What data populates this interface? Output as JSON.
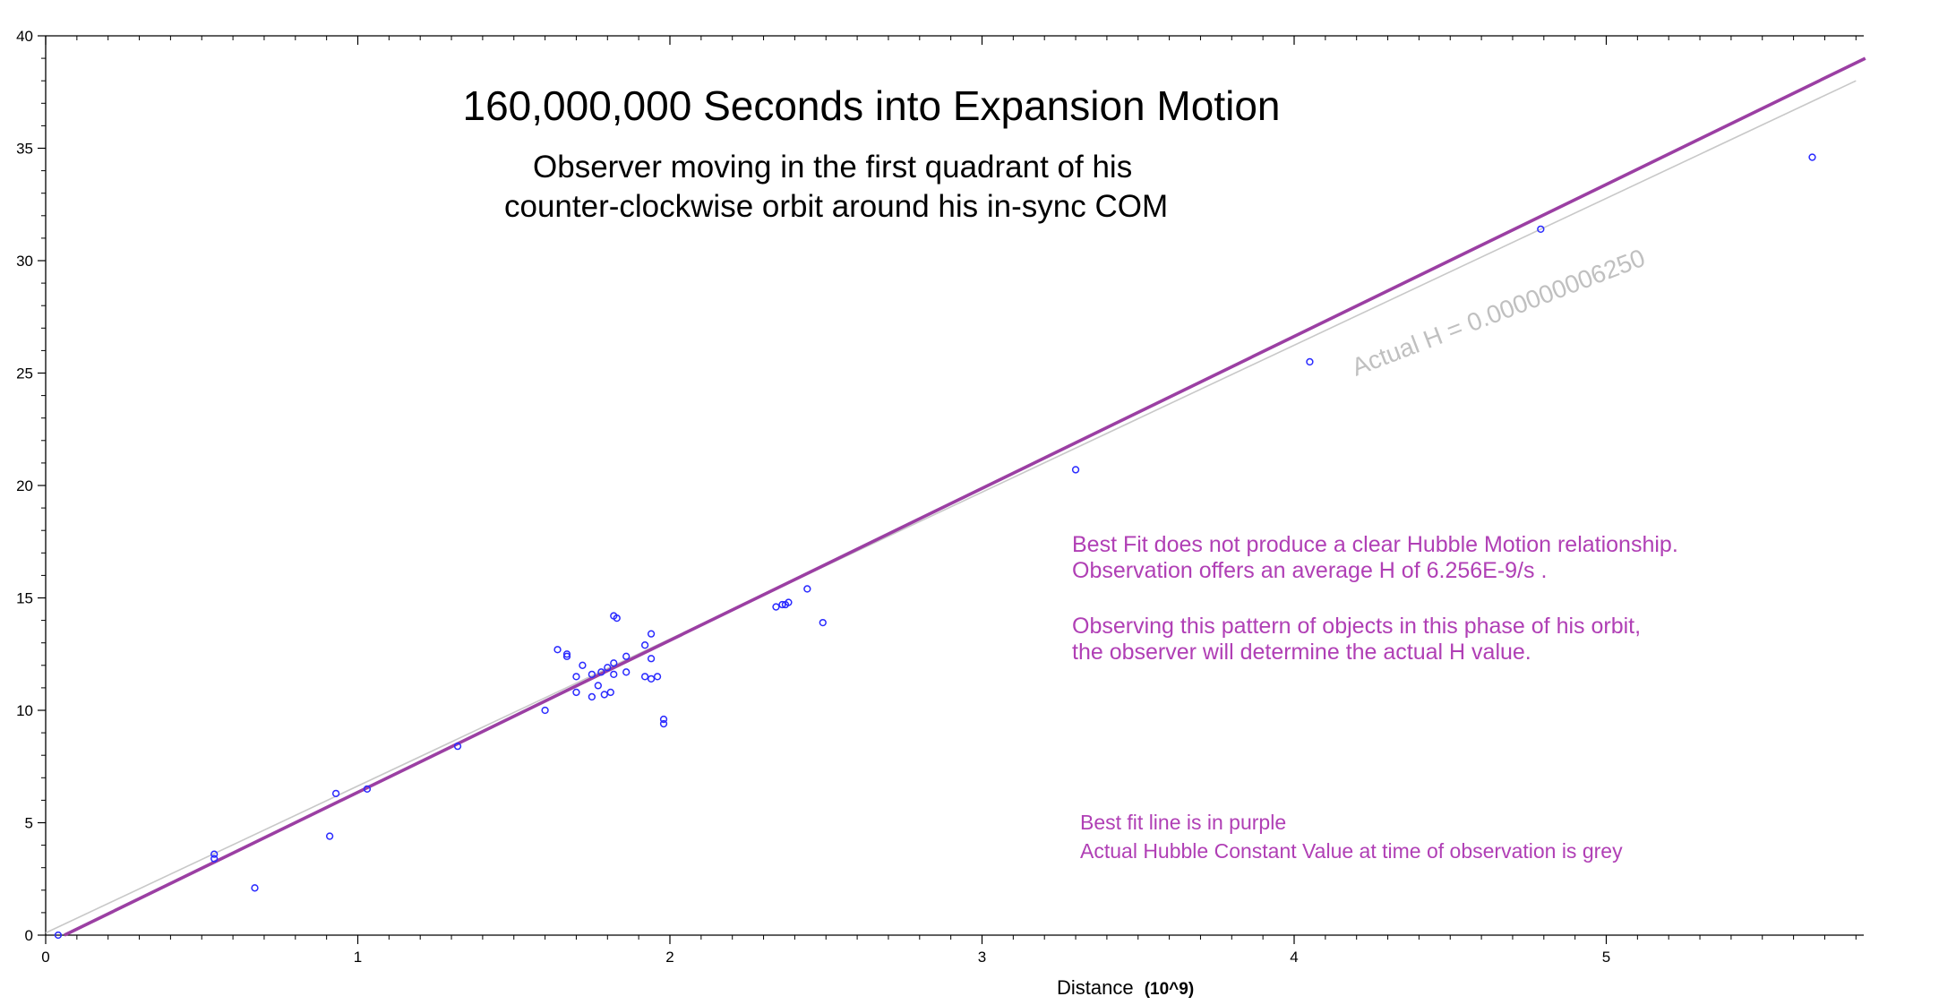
{
  "chart_data": {
    "type": "scatter",
    "title": "160,000,000 Seconds into Expansion Motion",
    "subtitle_lines": [
      "Observer moving in the first quadrant of his",
      "counter-clockwise orbit around his in-sync COM"
    ],
    "xlabel": "Distance",
    "xlabel_unit": "(10^9)",
    "ylabel": "",
    "xlim": [
      0,
      5.83
    ],
    "ylim": [
      0,
      40
    ],
    "x_ticks": [
      "0",
      "1",
      "2",
      "3",
      "4",
      "5"
    ],
    "y_ticks": [
      "0",
      "5",
      "10",
      "15",
      "20",
      "25",
      "30",
      "35",
      "40"
    ],
    "grid": false,
    "colors": {
      "points": "#2a2aff",
      "best_fit": "#9b3fa3",
      "actual": "#c8c8c8",
      "annotation": "#b03fb5",
      "axis": "#000000"
    },
    "points": [
      {
        "x": 0.04,
        "y": 0.0
      },
      {
        "x": 0.54,
        "y": 3.4
      },
      {
        "x": 0.54,
        "y": 3.6
      },
      {
        "x": 0.67,
        "y": 2.1
      },
      {
        "x": 0.91,
        "y": 4.4
      },
      {
        "x": 0.93,
        "y": 6.3
      },
      {
        "x": 1.03,
        "y": 6.5
      },
      {
        "x": 1.32,
        "y": 8.4
      },
      {
        "x": 1.6,
        "y": 10.0
      },
      {
        "x": 1.64,
        "y": 12.7
      },
      {
        "x": 1.67,
        "y": 12.5
      },
      {
        "x": 1.67,
        "y": 12.4
      },
      {
        "x": 1.7,
        "y": 10.8
      },
      {
        "x": 1.7,
        "y": 11.5
      },
      {
        "x": 1.72,
        "y": 12.0
      },
      {
        "x": 1.75,
        "y": 10.6
      },
      {
        "x": 1.75,
        "y": 11.6
      },
      {
        "x": 1.77,
        "y": 11.1
      },
      {
        "x": 1.78,
        "y": 11.7
      },
      {
        "x": 1.79,
        "y": 10.7
      },
      {
        "x": 1.8,
        "y": 11.9
      },
      {
        "x": 1.81,
        "y": 10.8
      },
      {
        "x": 1.82,
        "y": 11.6
      },
      {
        "x": 1.82,
        "y": 12.1
      },
      {
        "x": 1.82,
        "y": 14.2
      },
      {
        "x": 1.83,
        "y": 14.1
      },
      {
        "x": 1.86,
        "y": 12.4
      },
      {
        "x": 1.86,
        "y": 11.7
      },
      {
        "x": 1.92,
        "y": 11.5
      },
      {
        "x": 1.92,
        "y": 12.9
      },
      {
        "x": 1.94,
        "y": 12.3
      },
      {
        "x": 1.94,
        "y": 11.4
      },
      {
        "x": 1.94,
        "y": 13.4
      },
      {
        "x": 1.96,
        "y": 11.5
      },
      {
        "x": 1.98,
        "y": 9.4
      },
      {
        "x": 1.98,
        "y": 9.6
      },
      {
        "x": 2.34,
        "y": 14.6
      },
      {
        "x": 2.36,
        "y": 14.7
      },
      {
        "x": 2.37,
        "y": 14.7
      },
      {
        "x": 2.38,
        "y": 14.8
      },
      {
        "x": 2.44,
        "y": 15.4
      },
      {
        "x": 2.49,
        "y": 13.9
      },
      {
        "x": 3.3,
        "y": 20.7
      },
      {
        "x": 4.05,
        "y": 25.5
      },
      {
        "x": 4.79,
        "y": 31.4
      },
      {
        "x": 5.66,
        "y": 34.6
      }
    ],
    "best_fit_line": {
      "x": [
        0.06,
        5.83
      ],
      "y": [
        0.0,
        39.0
      ]
    },
    "actual_line": {
      "x": [
        0.0,
        5.8
      ],
      "y": [
        0.1,
        38.0
      ]
    },
    "annotations": {
      "actual_h_label": "Actual H = 0.000000006250",
      "note_lines": [
        "Best Fit does not produce a clear Hubble Motion relationship.",
        "Observation offers an average H of  6.256E-9/s .",
        "",
        "Observing this pattern of objects in this phase of his orbit,",
        "the observer will determine the actual H value."
      ],
      "legend_lines": [
        "Best fit line is in purple",
        "Actual Hubble Constant Value at time of observation is grey"
      ]
    }
  }
}
